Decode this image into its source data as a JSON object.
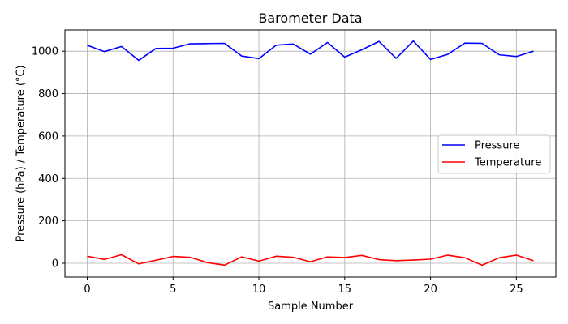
{
  "chart_data": {
    "type": "line",
    "title": "Barometer Data",
    "xlabel": "Sample Number",
    "ylabel": "Pressure (hPa) / Temperature (°C)",
    "xlim": [
      -1.3,
      27.3
    ],
    "ylim": [
      -65,
      1100
    ],
    "xticks": [
      0,
      5,
      10,
      15,
      20,
      25
    ],
    "yticks": [
      0,
      200,
      400,
      600,
      800,
      1000
    ],
    "grid": true,
    "legend_position": "center-right",
    "x": [
      0,
      1,
      2,
      3,
      4,
      5,
      6,
      7,
      8,
      9,
      10,
      11,
      12,
      13,
      14,
      15,
      16,
      17,
      18,
      19,
      20,
      21,
      22,
      23,
      24,
      25,
      26
    ],
    "series": [
      {
        "name": "Pressure",
        "color": "#0000ff",
        "values": [
          1028,
          998,
          1022,
          957,
          1013,
          1014,
          1035,
          1036,
          1037,
          977,
          965,
          1028,
          1034,
          986,
          1041,
          972,
          1007,
          1046,
          966,
          1048,
          961,
          985,
          1038,
          1037,
          983,
          975,
          1000
        ]
      },
      {
        "name": "Temperature",
        "color": "#ff0000",
        "values": [
          33,
          18,
          40,
          -3,
          14,
          32,
          28,
          3,
          -9,
          30,
          10,
          33,
          28,
          7,
          30,
          27,
          37,
          17,
          12,
          15,
          19,
          38,
          26,
          -9,
          26,
          38,
          12
        ]
      }
    ]
  }
}
